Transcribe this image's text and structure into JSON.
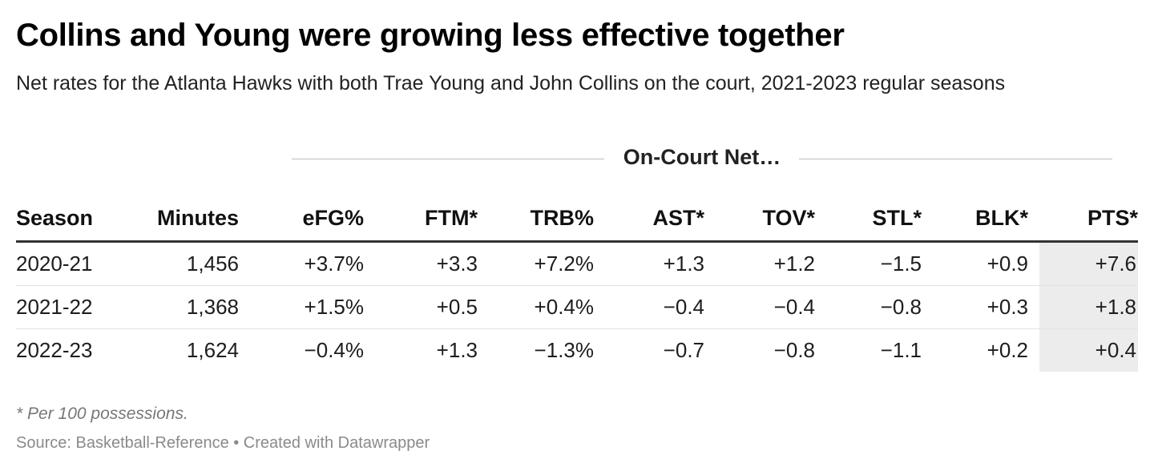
{
  "chart_data": {
    "type": "table",
    "title": "Collins and Young were growing less effective together",
    "subtitle": "Net rates for the Atlanta Hawks with both Trae Young and John Collins on the court, 2021-2023 regular seasons",
    "group_header": "On-Court Net…",
    "columns": [
      "Season",
      "Minutes",
      "eFG%",
      "FTM*",
      "TRB%",
      "AST*",
      "TOV*",
      "STL*",
      "BLK*",
      "PTS*"
    ],
    "rows": [
      [
        "2020-21",
        "1,456",
        "+3.7%",
        "+3.3",
        "+7.2%",
        "+1.3",
        "+1.2",
        "−1.5",
        "+0.9",
        "+7.6"
      ],
      [
        "2021-22",
        "1,368",
        "+1.5%",
        "+0.5",
        "+0.4%",
        "−0.4",
        "−0.4",
        "−0.8",
        "+0.3",
        "+1.8"
      ],
      [
        "2022-23",
        "1,624",
        "−0.4%",
        "+1.3",
        "−1.3%",
        "−0.7",
        "−0.8",
        "−1.1",
        "+0.2",
        "+0.4"
      ]
    ],
    "highlight_column": "PTS*",
    "highlight_color": "#ececec"
  },
  "footnote": "* Per 100 possessions.",
  "source": "Source: Basketball-Reference • Created with Datawrapper"
}
